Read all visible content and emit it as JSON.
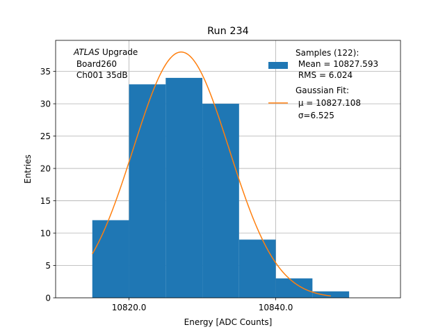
{
  "chart_data": {
    "type": "histogram",
    "title": "Run 234",
    "xlabel": "Energy [ADC Counts]",
    "ylabel": "Entries",
    "xlim": [
      10810,
      10857
    ],
    "ylim": [
      0,
      39.8
    ],
    "grid": true,
    "x_ticks": [
      10820,
      10840
    ],
    "x_tick_labels": [
      "10820.0",
      "10840.0"
    ],
    "y_ticks": [
      0,
      5,
      10,
      15,
      20,
      25,
      30,
      35
    ],
    "y_tick_labels": [
      "0",
      "5",
      "10",
      "15",
      "20",
      "25",
      "30",
      "35"
    ],
    "bins": [
      {
        "x0": 10815,
        "x1": 10820,
        "count": 12
      },
      {
        "x0": 10820,
        "x1": 10825,
        "count": 33
      },
      {
        "x0": 10825,
        "x1": 10830,
        "count": 34
      },
      {
        "x0": 10830,
        "x1": 10835,
        "count": 30
      },
      {
        "x0": 10835,
        "x1": 10840,
        "count": 9
      },
      {
        "x0": 10840,
        "x1": 10845,
        "count": 3
      },
      {
        "x0": 10845,
        "x1": 10850,
        "count": 1
      }
    ],
    "fit": {
      "type": "gaussian",
      "mu": 10827.108,
      "sigma": 6.525,
      "amplitude": 38,
      "x_range": [
        10815,
        10847.5
      ]
    },
    "annotation": {
      "italic": "ATLAS",
      "rest": " Upgrade",
      "line2": " Board260",
      "line3": " Ch001 35dB"
    },
    "legend": {
      "position": "top-right",
      "samples": {
        "line1": "Samples (122):",
        "line2": " Mean = 10827.593",
        "line3": " RMS = 6.024"
      },
      "fit": {
        "line1": "Gaussian Fit:",
        "line2": " μ = 10827.108",
        "line3": " σ=6.525"
      }
    },
    "colors": {
      "bars": "#1f77b4",
      "fit": "#ff7f0e",
      "grid": "#b0b0b0"
    }
  }
}
